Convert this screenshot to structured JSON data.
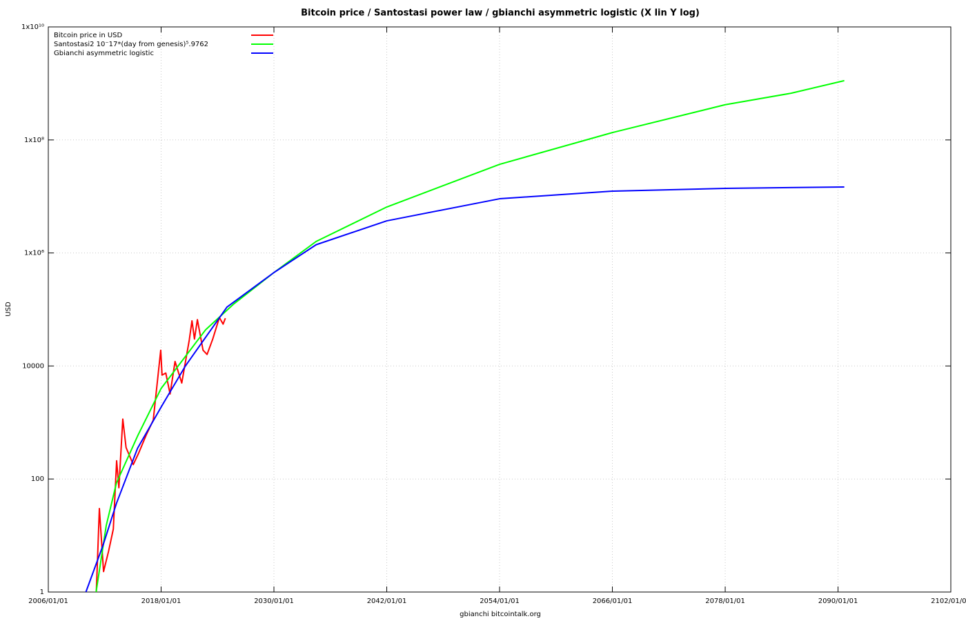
{
  "chart_data": {
    "type": "line",
    "title": "Bitcoin price / Santostasi power law / gbianchi asymmetric logistic (X lin Y log)",
    "x_label": "gbianchi bitcointalk.org",
    "y_label": "USD",
    "log_y": true,
    "grid": true,
    "legend": "top-left",
    "xlim": [
      "2006/01/01",
      "2102/01/01"
    ],
    "xticks": [
      "2006/01/01",
      "2018/01/01",
      "2030/01/01",
      "2042/01/01",
      "2054/01/01",
      "2066/01/01",
      "2078/01/01",
      "2090/01/01",
      "2102/01/01"
    ],
    "ylim": [
      1,
      10000000000
    ],
    "yticks": [
      1,
      100,
      10000,
      {
        "value": 1000000,
        "label": "1x10⁶"
      },
      {
        "value": 100000000,
        "label": "1x10⁸"
      },
      {
        "value": 10000000000,
        "label": "1x10¹⁰"
      }
    ],
    "series": [
      {
        "name": "Bitcoin price in USD",
        "color": "#ff0000",
        "x": [
          "2011/02/09",
          "2011/06/08",
          "2011/11/18",
          "2012/06/01",
          "2012/12/01",
          "2013/04/09",
          "2013/07/05",
          "2013/12/04",
          "2014/04/10",
          "2015/01/14",
          "2015/08/01",
          "2016/06/01",
          "2017/03/01",
          "2017/12/17",
          "2018/02/06",
          "2018/07/01",
          "2018/12/15",
          "2019/06/26",
          "2020/03/13",
          "2020/12/31",
          "2021/04/14",
          "2021/07/20",
          "2021/11/10",
          "2022/06/18",
          "2022/11/21",
          "2023/06/30",
          "2024/03/14",
          "2024/08/05",
          "2024/11/01"
        ],
        "values": [
          1,
          30,
          2.3,
          5.3,
          13,
          210,
          70,
          1150,
          360,
          180,
          280,
          600,
          1100,
          19000,
          6900,
          7500,
          3200,
          12000,
          5000,
          29000,
          63000,
          30000,
          66000,
          19000,
          16000,
          30000,
          72000,
          55000,
          70000
        ]
      },
      {
        "name": "Santostasi2 10⁻17*(day from genesis)⁵.9762",
        "color": "#00ff00",
        "x": [
          "2011/02/01",
          "2012/03/01",
          "2013/04/01",
          "2015/07/01",
          "2018/01/01",
          "2022/10/01",
          "2025/10/01",
          "2030/01/01",
          "2034/07/01",
          "2042/01/01",
          "2054/01/01",
          "2066/01/01",
          "2078/01/01",
          "2085/01/01",
          "2090/09/01"
        ],
        "values": [
          1,
          15,
          85,
          575,
          4000,
          44000,
          126000,
          450000,
          1600000,
          6500000,
          37000000,
          135000000,
          420000000,
          670000000,
          1120000000
        ]
      },
      {
        "name": "Gbianchi asymmetric logistic",
        "color": "#0000ff",
        "x": [
          "2010/01/01",
          "2011/11/01",
          "2013/04/01",
          "2015/07/01",
          "2018/01/01",
          "2020/08/01",
          "2025/01/01",
          "2030/01/01",
          "2034/07/01",
          "2042/01/01",
          "2054/01/01",
          "2066/01/01",
          "2078/01/01",
          "2090/09/01"
        ],
        "values": [
          1,
          6.8,
          37,
          350,
          1870,
          10000,
          110000,
          450000,
          1400000,
          3700000,
          9100000,
          12400000,
          13900000,
          14700000
        ]
      }
    ]
  }
}
